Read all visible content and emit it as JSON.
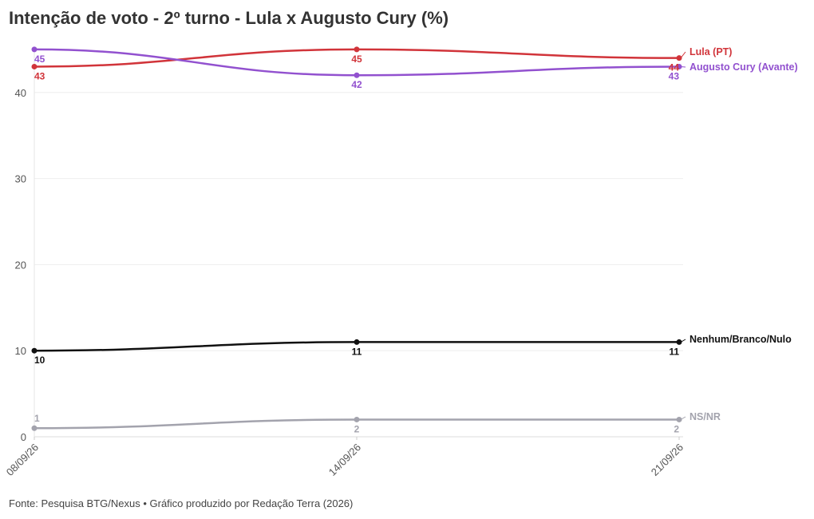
{
  "chart_data": {
    "type": "line",
    "title": "Intenção de voto - 2º turno - Lula x Augusto Cury (%)",
    "source": "Fonte: Pesquisa BTG/Nexus • Gráfico produzido por Redação Terra (2026)",
    "categories": [
      "08/09/26",
      "14/09/26",
      "21/09/26"
    ],
    "ylim": [
      0,
      45
    ],
    "yticks": [
      0,
      10,
      20,
      30,
      40
    ],
    "grid": true,
    "legend": "right (direct labels)",
    "series": [
      {
        "name": "Lula (PT)",
        "values": [
          43,
          45,
          44
        ],
        "color": "#d1343a"
      },
      {
        "name": "Augusto Cury (Avante)",
        "values": [
          45,
          42,
          43
        ],
        "color": "#9251cf"
      },
      {
        "name": "Nenhum/Branco/Nulo",
        "values": [
          10,
          11,
          11
        ],
        "color": "#111111"
      },
      {
        "name": "NS/NR",
        "values": [
          1,
          2,
          2
        ],
        "color": "#a3a3ad"
      }
    ]
  }
}
